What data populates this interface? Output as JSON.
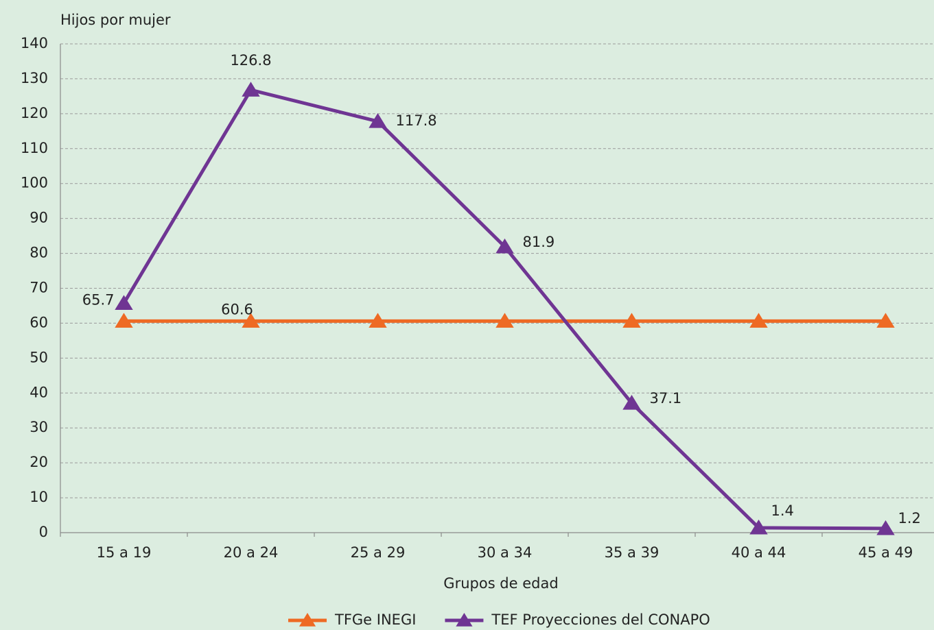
{
  "chart_data": {
    "type": "line",
    "y_label": "Hijos por mujer",
    "x_label": "Grupos de edad",
    "categories": [
      "15 a 19",
      "20 a 24",
      "25 a 29",
      "30 a 34",
      "35 a 39",
      "40 a 44",
      "45 a 49"
    ],
    "series": [
      {
        "name": "TFGe INEGI",
        "color": "#ee6a24",
        "values": [
          60.6,
          60.6,
          60.6,
          60.6,
          60.6,
          60.6,
          60.6
        ],
        "value_labels": [
          null,
          "60.6",
          null,
          null,
          null,
          null,
          null
        ]
      },
      {
        "name": "TEF Proyecciones del CONAPO",
        "color": "#6f3593",
        "values": [
          65.7,
          126.8,
          117.8,
          81.9,
          37.1,
          1.4,
          1.2
        ],
        "value_labels": [
          "65.7",
          "126.8",
          "117.8",
          "81.9",
          "37.1",
          "1.4",
          "1.2"
        ]
      }
    ],
    "ylim": [
      0,
      140
    ],
    "yticks": [
      0,
      10,
      20,
      30,
      40,
      50,
      60,
      70,
      80,
      90,
      100,
      110,
      120,
      130,
      140
    ],
    "grid": true,
    "legend": "bottom",
    "marker": "triangle"
  }
}
